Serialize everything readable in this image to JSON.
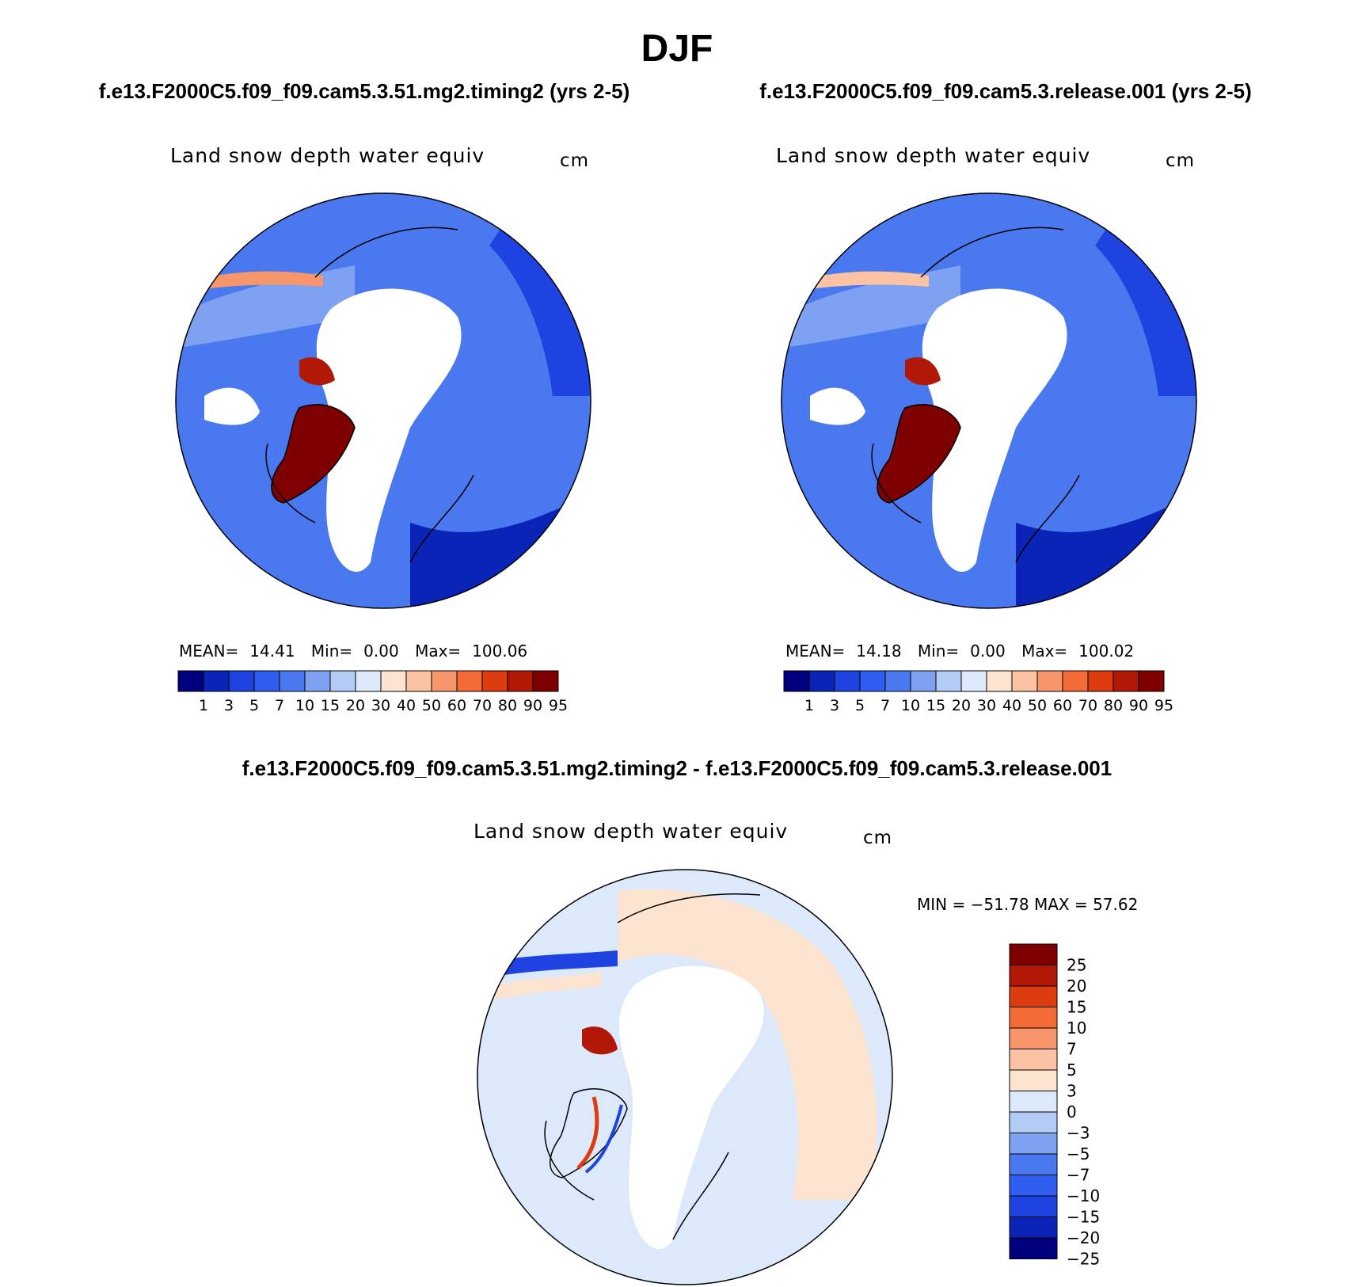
{
  "title": "DJF",
  "panels": [
    {
      "case": "f.e13.F2000C5.f09_f09.cam5.3.51.mg2.timing2 (yrs 2-5)",
      "variable": "Land snow depth water equiv",
      "units": "cm",
      "mean_label": "MEAN=",
      "mean": "14.41",
      "min_label": "Min=",
      "min": "0.00",
      "max_label": "Max=",
      "max": "100.06"
    },
    {
      "case": "f.e13.F2000C5.f09_f09.cam5.3.release.001 (yrs 2-5)",
      "variable": "Land snow depth water equiv",
      "units": "cm",
      "mean_label": "MEAN=",
      "mean": "14.18",
      "min_label": "Min=",
      "min": "0.00",
      "max_label": "Max=",
      "max": "100.02"
    }
  ],
  "colorbar_levels": [
    "1",
    "3",
    "5",
    "7",
    "10",
    "15",
    "20",
    "30",
    "40",
    "50",
    "60",
    "70",
    "80",
    "90",
    "95"
  ],
  "colorbar_colors": [
    "#00007f",
    "#0a24b8",
    "#1f43e0",
    "#2f5ef0",
    "#4a78ee",
    "#7ea1f2",
    "#b3ccf6",
    "#dce9fb",
    "#fde4d0",
    "#fbc3a4",
    "#f7966a",
    "#f26b36",
    "#dd3b10",
    "#b11906",
    "#7f0000"
  ],
  "difference": {
    "title": "f.e13.F2000C5.f09_f09.cam5.3.51.mg2.timing2 - f.e13.F2000C5.f09_f09.cam5.3.release.001",
    "variable": "Land snow depth water equiv",
    "units": "cm",
    "minmax_text": "MIN = −51.78 MAX =   57.62",
    "levels": [
      "25",
      "20",
      "15",
      "10",
      "7",
      "5",
      "3",
      "0",
      "−3",
      "−5",
      "−7",
      "−10",
      "−15",
      "−20",
      "−25"
    ],
    "colors": [
      "#7f0000",
      "#b11906",
      "#dd3b10",
      "#f26b36",
      "#f7966a",
      "#fbc3a4",
      "#fde4d0",
      "#dce9fb",
      "#b3ccf6",
      "#7ea1f2",
      "#4a78ee",
      "#2f5ef0",
      "#1f43e0",
      "#0a24b8",
      "#00007f"
    ]
  },
  "colors": {
    "snow_light": "#7ea1f2",
    "snow_mid": "#2f5ef0",
    "snow_deep": "#0a24b8",
    "greenland": "#7f0000",
    "diff_pos": "#fde4d0",
    "diff_neg": "#dce9fb"
  }
}
